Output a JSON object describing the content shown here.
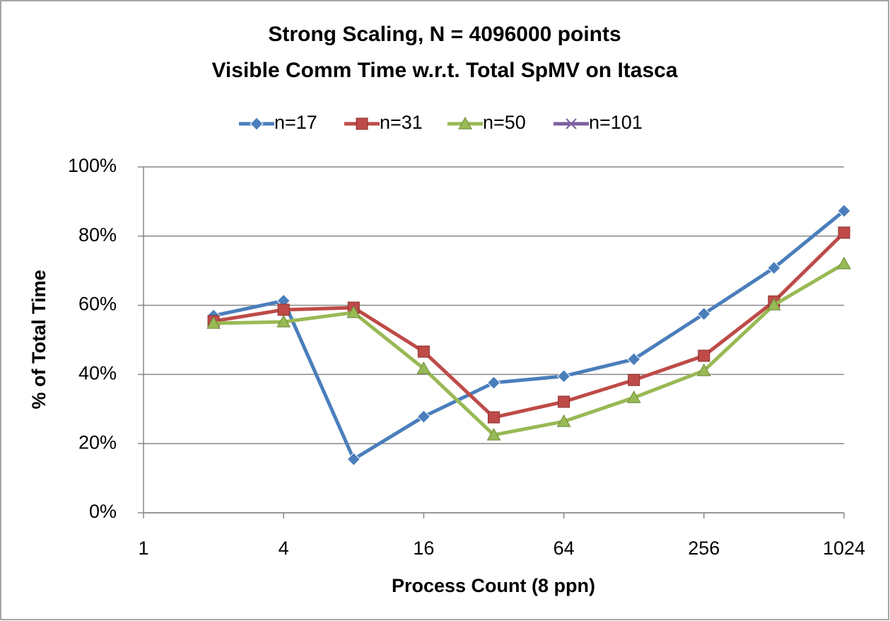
{
  "chart_data": {
    "type": "line",
    "title": "Strong Scaling, N = 4096000 points",
    "subtitle": "Visible Comm Time w.r.t. Total SpMV on Itasca",
    "x_label": "Process Count (8 ppn)",
    "y_label": "% of Total Time",
    "x": [
      2,
      4,
      8,
      16,
      32,
      64,
      128,
      256,
      512,
      1024
    ],
    "xscale": "log2",
    "xlim": [
      1,
      1024
    ],
    "xticks": [
      1,
      4,
      16,
      64,
      256,
      1024
    ],
    "ylim": [
      0,
      100
    ],
    "yticks": [
      {
        "value": 0,
        "label": "0%"
      },
      {
        "value": 20,
        "label": "20%"
      },
      {
        "value": 40,
        "label": "40%"
      },
      {
        "value": 60,
        "label": "60%"
      },
      {
        "value": 80,
        "label": "80%"
      },
      {
        "value": 100,
        "label": "100%"
      }
    ],
    "grid": true,
    "legend": "top",
    "series": [
      {
        "name": "n=17",
        "color": "#4a7ebb",
        "marker": "diamond",
        "values": [
          57,
          61.3,
          15.5,
          27.8,
          37.6,
          39.5,
          44.4,
          57.5,
          70.8,
          87.3
        ]
      },
      {
        "name": "n=31",
        "color": "#be4b48",
        "marker": "square",
        "values": [
          55.4,
          58.7,
          59.3,
          46.6,
          27.6,
          32.1,
          38.4,
          45.4,
          61.1,
          81
        ]
      },
      {
        "name": "n=50",
        "color": "#98b954",
        "marker": "triangle",
        "values": [
          54.8,
          55.2,
          57.9,
          41.7,
          22.5,
          26.4,
          33.3,
          41.1,
          60.1,
          72
        ]
      },
      {
        "name": "n=101",
        "color": "#7d60a0",
        "marker": "x",
        "values": [
          null,
          null,
          null,
          null,
          null,
          null,
          null,
          null,
          null,
          null
        ]
      }
    ]
  }
}
